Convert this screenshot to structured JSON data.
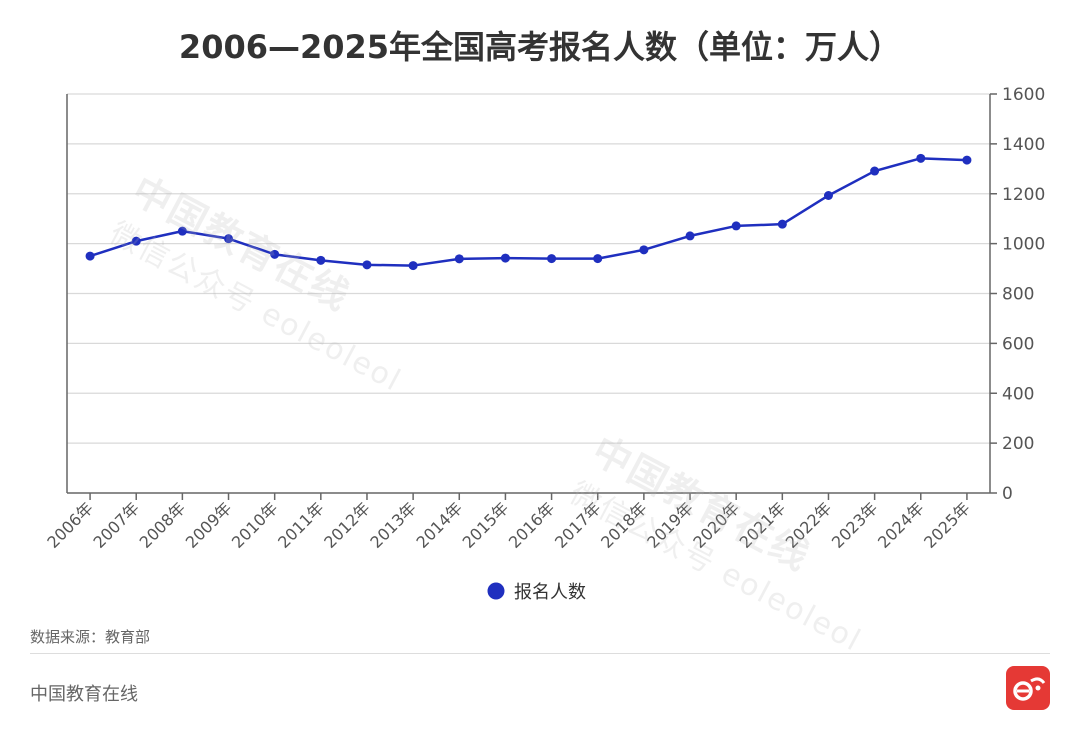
{
  "title": "2006—2025年全国高考报名人数（单位：万人）",
  "source": "数据来源：教育部",
  "brand": "中国教育在线",
  "watermark": {
    "main": "中国教育在线",
    "sub": "微信公众号 eoleoleol"
  },
  "colors": {
    "series": "#1f2fbf",
    "axis": "#666666",
    "grid": "#d9d9d9",
    "logo": "#e53935"
  },
  "chart_data": {
    "type": "line",
    "title": "2006—2025年全国高考报名人数（单位：万人）",
    "xlabel": "",
    "ylabel": "",
    "categories": [
      "2006年",
      "2007年",
      "2008年",
      "2009年",
      "2010年",
      "2011年",
      "2012年",
      "2013年",
      "2014年",
      "2015年",
      "2016年",
      "2017年",
      "2018年",
      "2019年",
      "2020年",
      "2021年",
      "2022年",
      "2023年",
      "2024年",
      "2025年"
    ],
    "series": [
      {
        "name": "报名人数",
        "values": [
          950,
          1010,
          1050,
          1020,
          957,
          933,
          915,
          912,
          939,
          942,
          940,
          940,
          975,
          1031,
          1071,
          1078,
          1193,
          1291,
          1342,
          1335
        ]
      }
    ],
    "ylim": [
      0,
      1600
    ],
    "yticks": [
      0,
      200,
      400,
      600,
      800,
      1000,
      1200,
      1400,
      1600
    ],
    "y_axis_side": "right",
    "grid": true,
    "legend": "bottom"
  }
}
